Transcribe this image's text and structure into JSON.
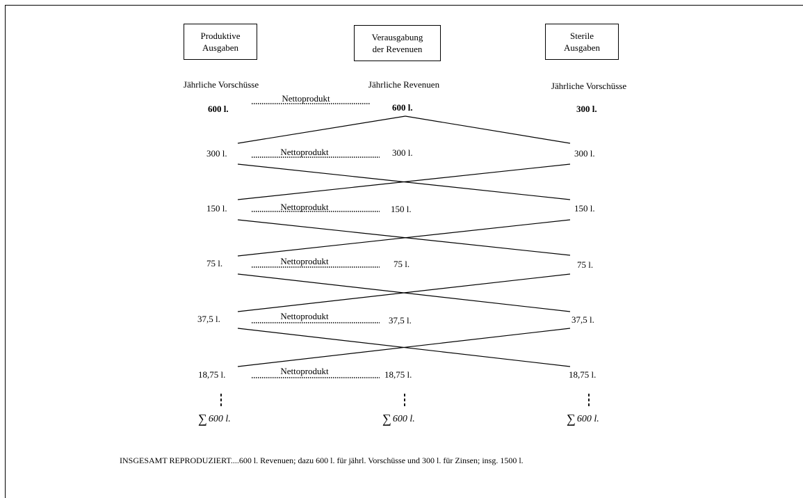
{
  "boxes": {
    "left": [
      "Produktive",
      "Ausgaben"
    ],
    "center": [
      "Verausgabung",
      "der Revenuen"
    ],
    "right": [
      "Sterile",
      "Ausgaben"
    ]
  },
  "headers": {
    "left": "Jährliche Vorschüsse",
    "center": "Jährliche Revenuen",
    "right": "Jährliche Vorschüsse"
  },
  "flow_label": "Nettoprodukt",
  "rows": [
    {
      "left": "600 l.",
      "center": "600 l.",
      "right": "300 l."
    },
    {
      "left": "300 l.",
      "center": "300 l.",
      "right": "300 l."
    },
    {
      "left": "150 l.",
      "center": "150 l.",
      "right": "150 l."
    },
    {
      "left": "75 l.",
      "center": "75 l.",
      "right": "75 l."
    },
    {
      "left": "37,5 l.",
      "center": "37,5 l.",
      "right": "37,5 l."
    },
    {
      "left": "18,75 l.",
      "center": "18,75 l.",
      "right": "18,75 l."
    }
  ],
  "sums": {
    "symbol": "∑",
    "left": "600 l.",
    "center": "600 l.",
    "right": "600 l."
  },
  "footer": "INSGESAMT REPRODUZIERT....600 l. Revenuen; dazu 600 l. für jährl. Vorschüsse und 300 l. für Zinsen; insg. 1500 l."
}
